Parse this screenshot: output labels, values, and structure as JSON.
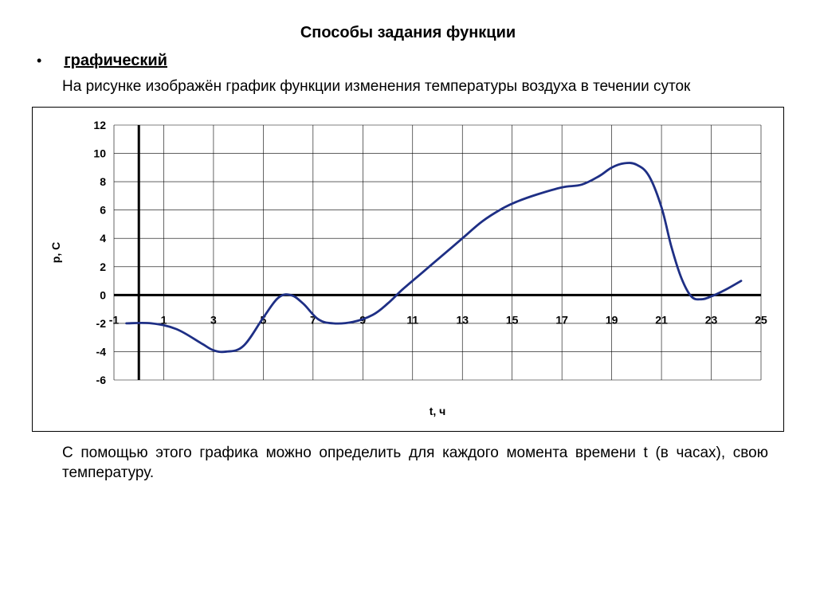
{
  "title": "Способы задания функции",
  "subtitle": "графический",
  "intro": "На рисунке изображён график функции изменения температуры воздуха в течении суток",
  "outro": "С помощью этого графика можно определить для  каждого момента времени t (в часах), свою температуру.",
  "chart": {
    "type": "line",
    "xlabel": "t, ч",
    "ylabel": "p, C",
    "xlim": [
      -1,
      25
    ],
    "ylim": [
      -6,
      12
    ],
    "xtick_start": -1,
    "xtick_step": 2,
    "ytick_start": -6,
    "ytick_step": 2,
    "tick_fontsize": 14,
    "tick_fontweight": "bold",
    "label_fontsize": 14,
    "label_fontweight": "bold",
    "grid_color": "#000000",
    "grid_width": 0.6,
    "axis_color": "#000000",
    "axis_width": 3,
    "line_color": "#1e2f85",
    "line_width": 2.8,
    "background_color": "#ffffff",
    "data": [
      {
        "x": -0.5,
        "y": -2.0
      },
      {
        "x": 0.5,
        "y": -2.0
      },
      {
        "x": 1.5,
        "y": -2.4
      },
      {
        "x": 2.5,
        "y": -3.4
      },
      {
        "x": 3.0,
        "y": -3.9
      },
      {
        "x": 3.5,
        "y": -4.0
      },
      {
        "x": 4.2,
        "y": -3.6
      },
      {
        "x": 5.0,
        "y": -1.6
      },
      {
        "x": 5.6,
        "y": -0.2
      },
      {
        "x": 6.1,
        "y": 0.0
      },
      {
        "x": 6.6,
        "y": -0.6
      },
      {
        "x": 7.2,
        "y": -1.7
      },
      {
        "x": 7.8,
        "y": -2.0
      },
      {
        "x": 8.6,
        "y": -1.9
      },
      {
        "x": 9.4,
        "y": -1.4
      },
      {
        "x": 10.0,
        "y": -0.6
      },
      {
        "x": 10.6,
        "y": 0.4
      },
      {
        "x": 11.4,
        "y": 1.6
      },
      {
        "x": 12.2,
        "y": 2.8
      },
      {
        "x": 13.0,
        "y": 4.0
      },
      {
        "x": 13.8,
        "y": 5.2
      },
      {
        "x": 14.6,
        "y": 6.1
      },
      {
        "x": 15.2,
        "y": 6.6
      },
      {
        "x": 16.0,
        "y": 7.1
      },
      {
        "x": 17.0,
        "y": 7.6
      },
      {
        "x": 17.8,
        "y": 7.8
      },
      {
        "x": 18.5,
        "y": 8.4
      },
      {
        "x": 19.0,
        "y": 9.0
      },
      {
        "x": 19.5,
        "y": 9.3
      },
      {
        "x": 20.0,
        "y": 9.2
      },
      {
        "x": 20.5,
        "y": 8.4
      },
      {
        "x": 21.0,
        "y": 6.2
      },
      {
        "x": 21.4,
        "y": 3.4
      },
      {
        "x": 21.8,
        "y": 1.2
      },
      {
        "x": 22.2,
        "y": -0.1
      },
      {
        "x": 22.6,
        "y": -0.3
      },
      {
        "x": 23.0,
        "y": -0.1
      },
      {
        "x": 23.6,
        "y": 0.4
      },
      {
        "x": 24.2,
        "y": 1.0
      }
    ]
  }
}
